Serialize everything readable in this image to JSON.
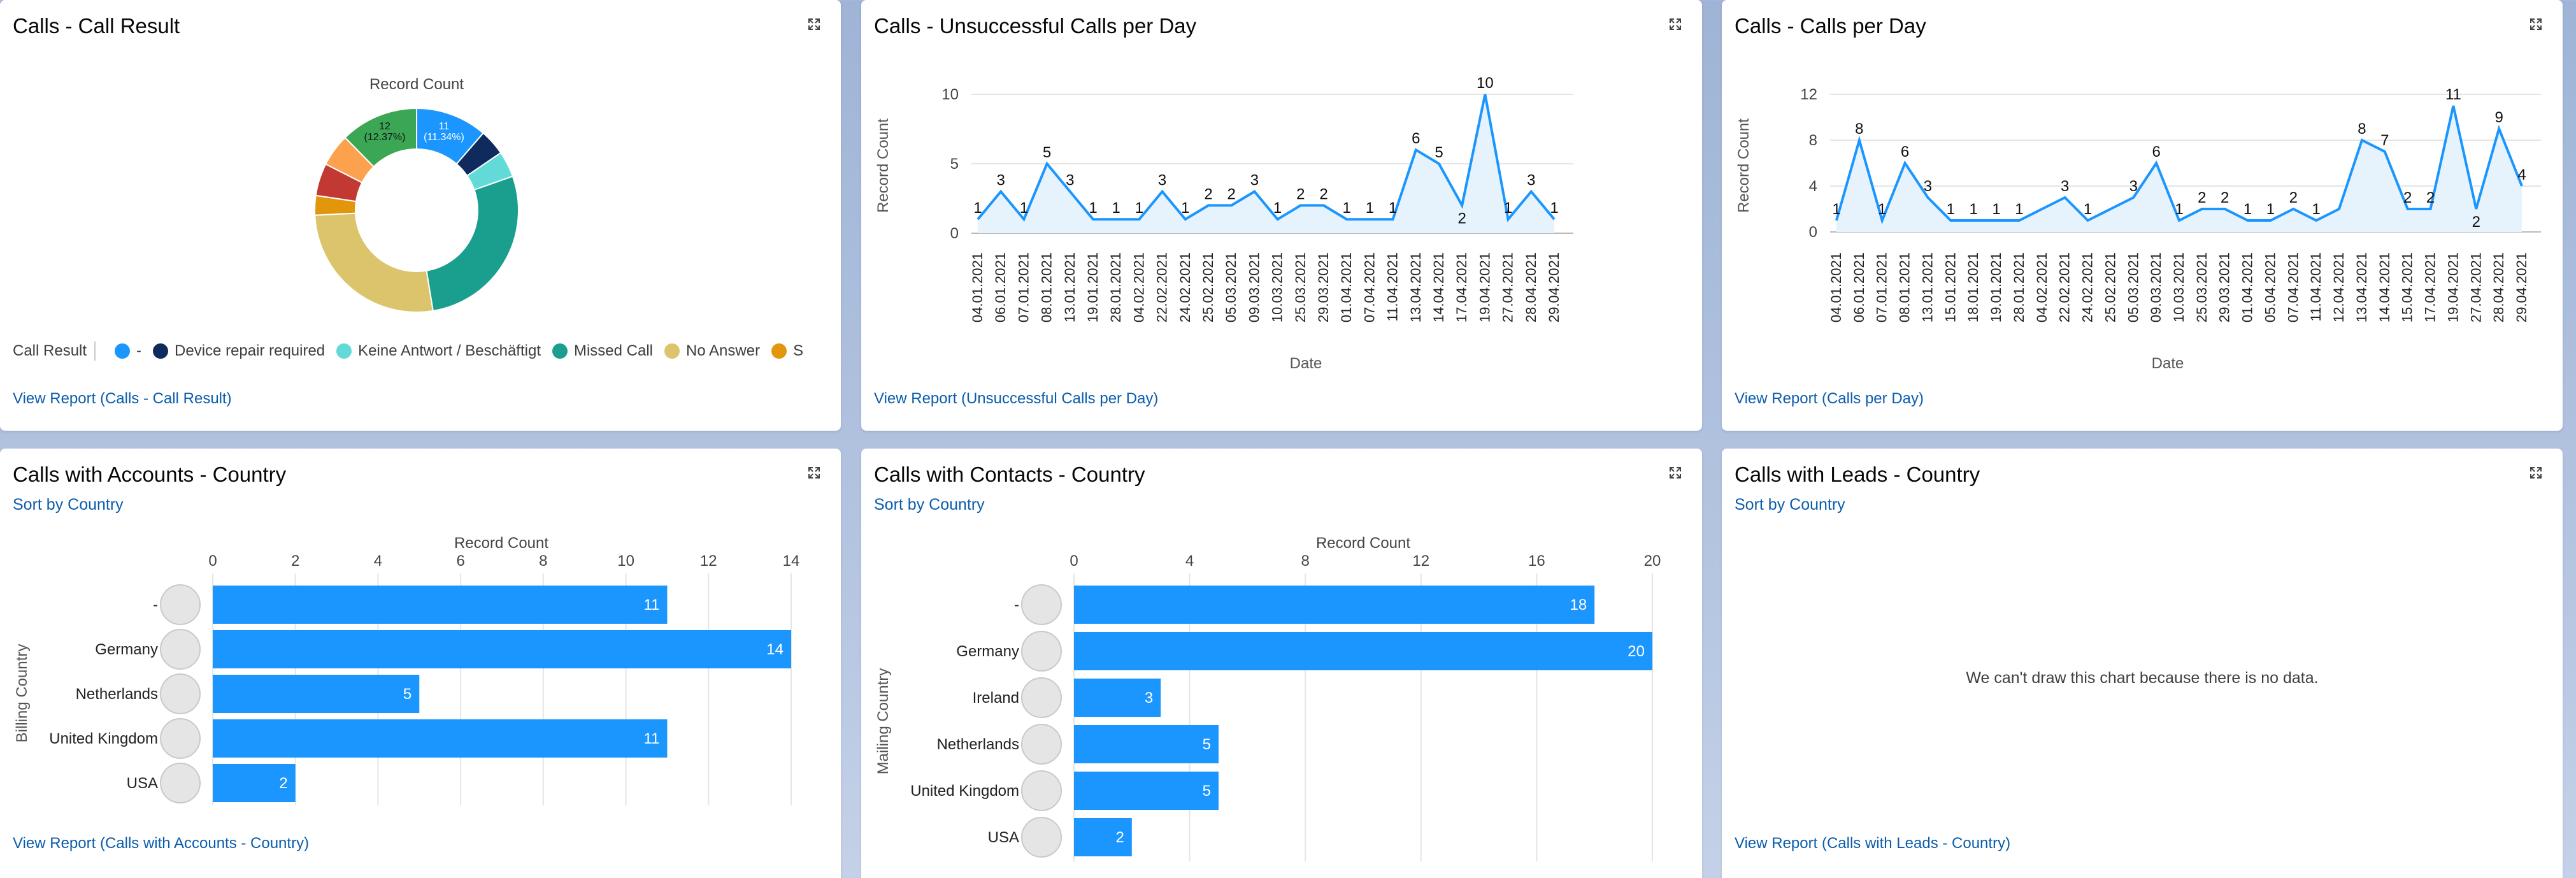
{
  "common": {
    "record_count": "Record Count",
    "date_label": "Date",
    "accent": "#1b96ff",
    "area_fill": "#e6f3fc"
  },
  "cards": {
    "call_result": {
      "title": "Calls - Call Result",
      "link": "View Report (Calls - Call Result)",
      "legend_title": "Call Result",
      "legend": [
        {
          "label": "-",
          "color": "#1b96ff"
        },
        {
          "label": "Device repair required",
          "color": "#0f2a5c"
        },
        {
          "label": "Keine Antwort / Beschäftigt",
          "color": "#61dad8"
        },
        {
          "label": "Missed Call",
          "color": "#1a9e8d"
        },
        {
          "label": "No Answer",
          "color": "#dcc46c"
        },
        {
          "label": "S",
          "color": "#e2960c"
        }
      ],
      "label_blue_value": "11",
      "label_blue_pct": "(11.34%)",
      "label_green_value": "12",
      "label_green_pct": "(12.37%)"
    },
    "unsuccessful": {
      "title": "Calls - Unsuccessful Calls per Day",
      "link": "View Report (Unsuccessful Calls per Day)"
    },
    "per_day": {
      "title": "Calls - Calls per Day",
      "link": "View Report (Calls per Day)"
    },
    "accounts": {
      "title": "Calls with Accounts - Country",
      "sort": "Sort by Country",
      "axis": "Billing Country",
      "link": "View Report (Calls with Accounts - Country)"
    },
    "contacts": {
      "title": "Calls with Contacts - Country",
      "sort": "Sort by Country",
      "axis": "Mailing Country"
    },
    "leads": {
      "title": "Calls with Leads - Country",
      "sort": "Sort by Country",
      "nodata": "We can't draw this chart because there is no data.",
      "link": "View Report (Calls with Leads - Country)"
    }
  },
  "chart_data": [
    {
      "id": "call_result",
      "type": "pie",
      "title": "Record Count",
      "slices": [
        {
          "label": "-",
          "value": 11,
          "color": "#1b96ff"
        },
        {
          "label": "Device repair required",
          "value": 4,
          "color": "#0f2a5c"
        },
        {
          "label": "Keine Antwort / Beschäftigt",
          "value": 4,
          "color": "#61dad8"
        },
        {
          "label": "Missed Call",
          "value": 27,
          "color": "#1a9e8d"
        },
        {
          "label": "No Answer",
          "value": 26,
          "color": "#dcc46c"
        },
        {
          "label": "S",
          "value": 3,
          "color": "#e2960c"
        },
        {
          "label": "",
          "value": 5,
          "color": "#c23934"
        },
        {
          "label": "",
          "value": 5,
          "color": "#fca24e"
        },
        {
          "label": "",
          "value": 12,
          "color": "#3ba755"
        }
      ]
    },
    {
      "id": "unsuccessful",
      "type": "area",
      "ylabel": "Record Count",
      "xlabel": "Date",
      "ylim": [
        0,
        10
      ],
      "yticks": [
        0,
        5,
        10
      ],
      "x": [
        "04.01.2021",
        "06.01.2021",
        "07.01.2021",
        "08.01.2021",
        "13.01.2021",
        "19.01.2021",
        "28.01.2021",
        "04.02.2021",
        "22.02.2021",
        "24.02.2021",
        "25.02.2021",
        "05.03.2021",
        "09.03.2021",
        "10.03.2021",
        "25.03.2021",
        "29.03.2021",
        "01.04.2021",
        "07.04.2021",
        "11.04.2021",
        "13.04.2021",
        "14.04.2021",
        "17.04.2021",
        "19.04.2021",
        "27.04.2021",
        "28.04.2021",
        "29.04.2021"
      ],
      "values": [
        1,
        3,
        1,
        5,
        3,
        1,
        1,
        1,
        3,
        1,
        2,
        2,
        3,
        1,
        2,
        2,
        1,
        1,
        1,
        6,
        5,
        2,
        10,
        1,
        3,
        1
      ]
    },
    {
      "id": "per_day",
      "type": "area",
      "ylabel": "Record Count",
      "xlabel": "Date",
      "ylim": [
        0,
        12
      ],
      "yticks": [
        0,
        4,
        8,
        12
      ],
      "x": [
        "04.01.2021",
        "06.01.2021",
        "07.01.2021",
        "08.01.2021",
        "13.01.2021",
        "15.01.2021",
        "18.01.2021",
        "19.01.2021",
        "28.01.2021",
        "04.02.2021",
        "22.02.2021",
        "24.02.2021",
        "25.02.2021",
        "05.03.2021",
        "09.03.2021",
        "10.03.2021",
        "25.03.2021",
        "29.03.2021",
        "01.04.2021",
        "05.04.2021",
        "07.04.2021",
        "11.04.2021",
        "12.04.2021",
        "13.04.2021",
        "14.04.2021",
        "15.04.2021",
        "17.04.2021",
        "19.04.2021",
        "27.04.2021",
        "28.04.2021",
        "29.04.2021"
      ],
      "values": [
        1,
        8,
        1,
        6,
        3,
        1,
        1,
        1,
        1,
        2,
        3,
        1,
        2,
        3,
        6,
        1,
        2,
        2,
        1,
        1,
        2,
        1,
        2,
        8,
        7,
        2,
        2,
        11,
        2,
        9,
        4
      ],
      "labeled": [
        true,
        true,
        true,
        true,
        true,
        true,
        true,
        true,
        true,
        false,
        true,
        true,
        false,
        true,
        true,
        true,
        true,
        true,
        true,
        true,
        true,
        true,
        false,
        true,
        true,
        true,
        true,
        true,
        true,
        true,
        true
      ]
    },
    {
      "id": "accounts",
      "type": "bar",
      "orientation": "horizontal",
      "title": "Record Count",
      "ylabel": "Billing Country",
      "categories": [
        "-",
        "Germany",
        "Netherlands",
        "United Kingdom",
        "USA"
      ],
      "values": [
        11,
        14,
        5,
        11,
        2
      ],
      "xlim": [
        0,
        14
      ],
      "xticks": [
        0,
        2,
        4,
        6,
        8,
        10,
        12,
        14
      ]
    },
    {
      "id": "contacts",
      "type": "bar",
      "orientation": "horizontal",
      "title": "Record Count",
      "ylabel": "Mailing Country",
      "categories": [
        "-",
        "Germany",
        "Ireland",
        "Netherlands",
        "United Kingdom",
        "USA"
      ],
      "values": [
        18,
        20,
        3,
        5,
        5,
        2
      ],
      "xlim": [
        0,
        20
      ],
      "xticks": [
        0,
        4,
        8,
        12,
        16,
        20
      ]
    }
  ]
}
